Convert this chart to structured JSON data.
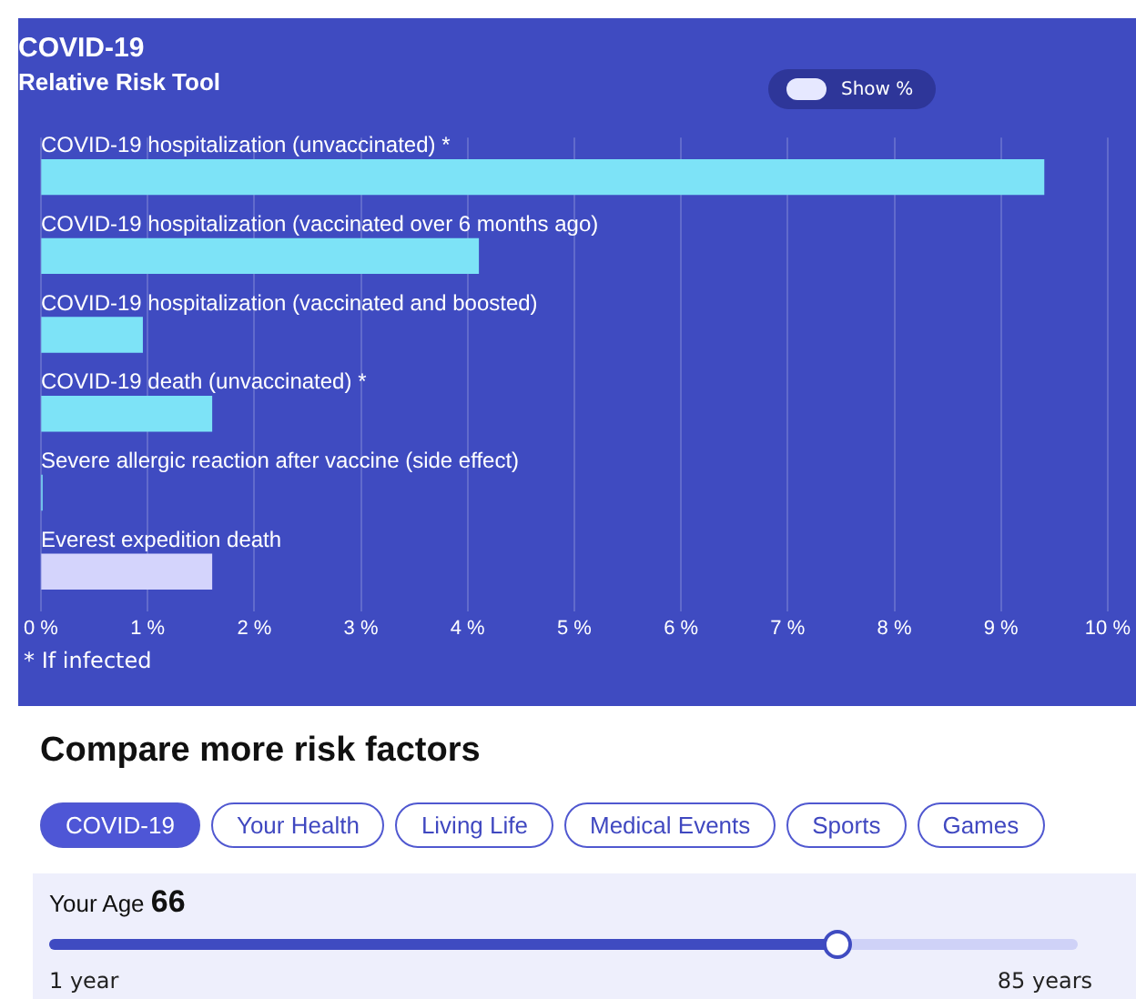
{
  "chart_data": {
    "type": "bar",
    "orientation": "horizontal",
    "title": "COVID-19",
    "subtitle": "Relative Risk Tool",
    "categories": [
      "COVID-19 hospitalization (unvaccinated) *",
      "COVID-19 hospitalization (vaccinated over 6 months ago)",
      "COVID-19 hospitalization (vaccinated and boosted)",
      "COVID-19 death (unvaccinated) *",
      "Severe allergic reaction after vaccine (side effect)",
      "Everest expedition death"
    ],
    "values": [
      9.4,
      4.1,
      0.95,
      1.6,
      0.01,
      1.6
    ],
    "colors": [
      "#7de3f7",
      "#7de3f7",
      "#7de3f7",
      "#7de3f7",
      "#7de3f7",
      "#d4d4fc"
    ],
    "xlim": [
      0,
      10
    ],
    "xticks": [
      {
        "value": 0,
        "label": "0 %"
      },
      {
        "value": 1,
        "label": "1 %"
      },
      {
        "value": 2,
        "label": "2 %"
      },
      {
        "value": 3,
        "label": "3 %"
      },
      {
        "value": 4,
        "label": "4 %"
      },
      {
        "value": 5,
        "label": "5 %"
      },
      {
        "value": 6,
        "label": "6 %"
      },
      {
        "value": 7,
        "label": "7 %"
      },
      {
        "value": 8,
        "label": "8 %"
      },
      {
        "value": 9,
        "label": "9 %"
      },
      {
        "value": 10,
        "label": "10 %"
      }
    ],
    "grid": "x",
    "legend": false,
    "annotations": [
      "Show %",
      "* If infected",
      "Compare more risk factors",
      "COVID-19",
      "Your Health",
      "Living Life",
      "Medical Events",
      "Sports",
      "Games",
      "Your Age",
      "66",
      "1 year",
      "85 years"
    ]
  }
}
